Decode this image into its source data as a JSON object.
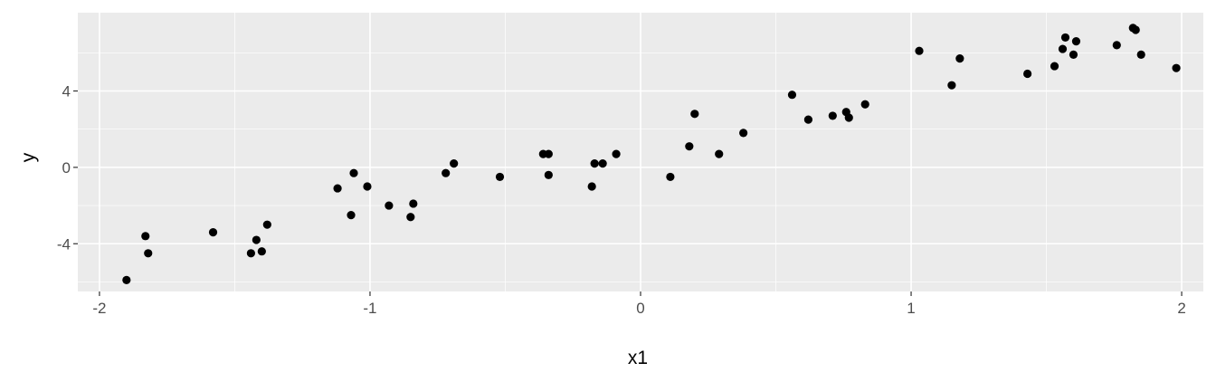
{
  "chart_data": {
    "type": "scatter",
    "title": "",
    "xlabel": "x1",
    "ylabel": "y",
    "xlim": [
      -2.08,
      2.08
    ],
    "ylim": [
      -6.5,
      8.1
    ],
    "x_ticks": [
      -2,
      -1,
      0,
      1,
      2
    ],
    "x_tick_labels": [
      "-2",
      "-1",
      "0",
      "1",
      "2"
    ],
    "y_ticks": [
      -4,
      0,
      4
    ],
    "y_tick_labels": [
      "-4",
      "0",
      "4"
    ],
    "grid": true,
    "legend": "none",
    "colors": {
      "panel": "#ebebeb",
      "grid": "#ffffff",
      "point": "#000000",
      "tick_text": "#4d4d4d",
      "tick_mark": "#333333"
    },
    "x": [
      -1.9,
      -1.83,
      -1.82,
      -1.58,
      -1.44,
      -1.42,
      -1.4,
      -1.38,
      -1.12,
      -1.07,
      -1.06,
      -1.01,
      -0.93,
      -0.85,
      -0.84,
      -0.72,
      -0.69,
      -0.52,
      -0.36,
      -0.34,
      -0.34,
      -0.18,
      -0.17,
      -0.14,
      -0.09,
      0.11,
      0.18,
      0.2,
      0.29,
      0.38,
      0.56,
      0.62,
      0.71,
      0.76,
      0.77,
      0.83,
      1.03,
      1.15,
      1.18,
      1.43,
      1.53,
      1.56,
      1.57,
      1.6,
      1.61,
      1.76,
      1.82,
      1.83,
      1.85,
      1.98
    ],
    "y": [
      -5.9,
      -3.6,
      -4.5,
      -3.4,
      -4.5,
      -3.8,
      -4.4,
      -3.0,
      -1.1,
      -2.5,
      -0.3,
      -1.0,
      -2.0,
      -2.6,
      -1.9,
      -0.3,
      0.2,
      -0.5,
      0.7,
      -0.4,
      0.7,
      -1.0,
      0.2,
      0.2,
      0.7,
      -0.5,
      1.1,
      2.8,
      0.7,
      1.8,
      3.8,
      2.5,
      2.7,
      2.9,
      2.6,
      3.3,
      6.1,
      4.3,
      5.7,
      4.9,
      5.3,
      6.2,
      6.8,
      5.9,
      6.6,
      6.4,
      7.3,
      7.2,
      5.9,
      5.2
    ]
  }
}
